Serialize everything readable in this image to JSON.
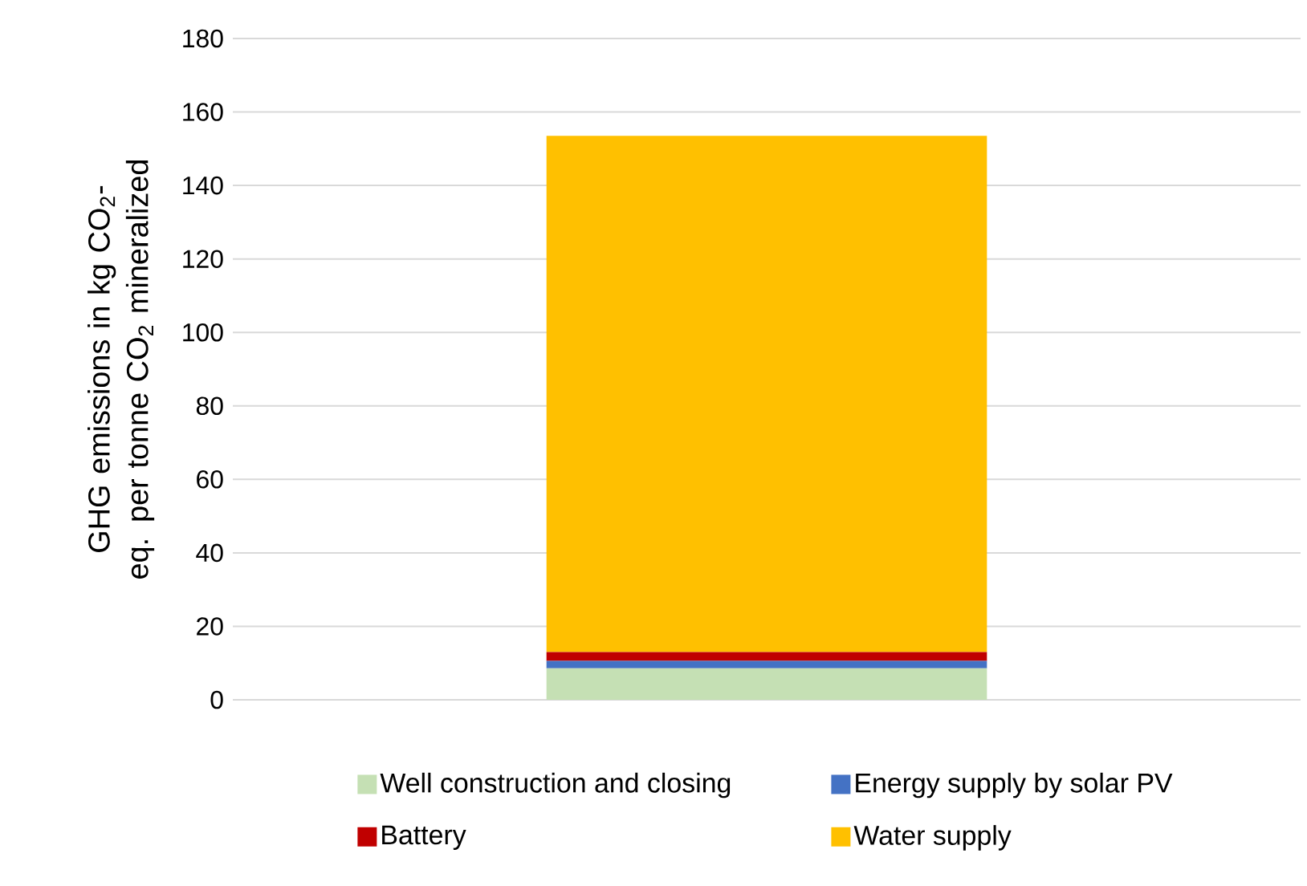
{
  "chart_data": {
    "type": "bar",
    "stacked": true,
    "ylabel": "GHG emissions in kg CO$_{2}$-eq. per tonne CO$_{2}$ mineralized",
    "categories": [
      null
    ],
    "series": [
      {
        "name": "Well construction and closing",
        "color": "#c5e0b4",
        "values": [
          8.6
        ]
      },
      {
        "name": "Energy supply by solar PV",
        "color": "#4472c4",
        "values": [
          2.0
        ]
      },
      {
        "name": "Battery",
        "color": "#c00000",
        "values": [
          2.4
        ]
      },
      {
        "name": "Water supply",
        "color": "#ffc000",
        "values": [
          140.5
        ]
      }
    ],
    "ylim": [
      0,
      180
    ],
    "yticks": [
      0,
      20,
      40,
      60,
      80,
      100,
      120,
      140,
      160,
      180
    ],
    "grid": "y",
    "legend": "bottom",
    "tick_labels": "y"
  }
}
